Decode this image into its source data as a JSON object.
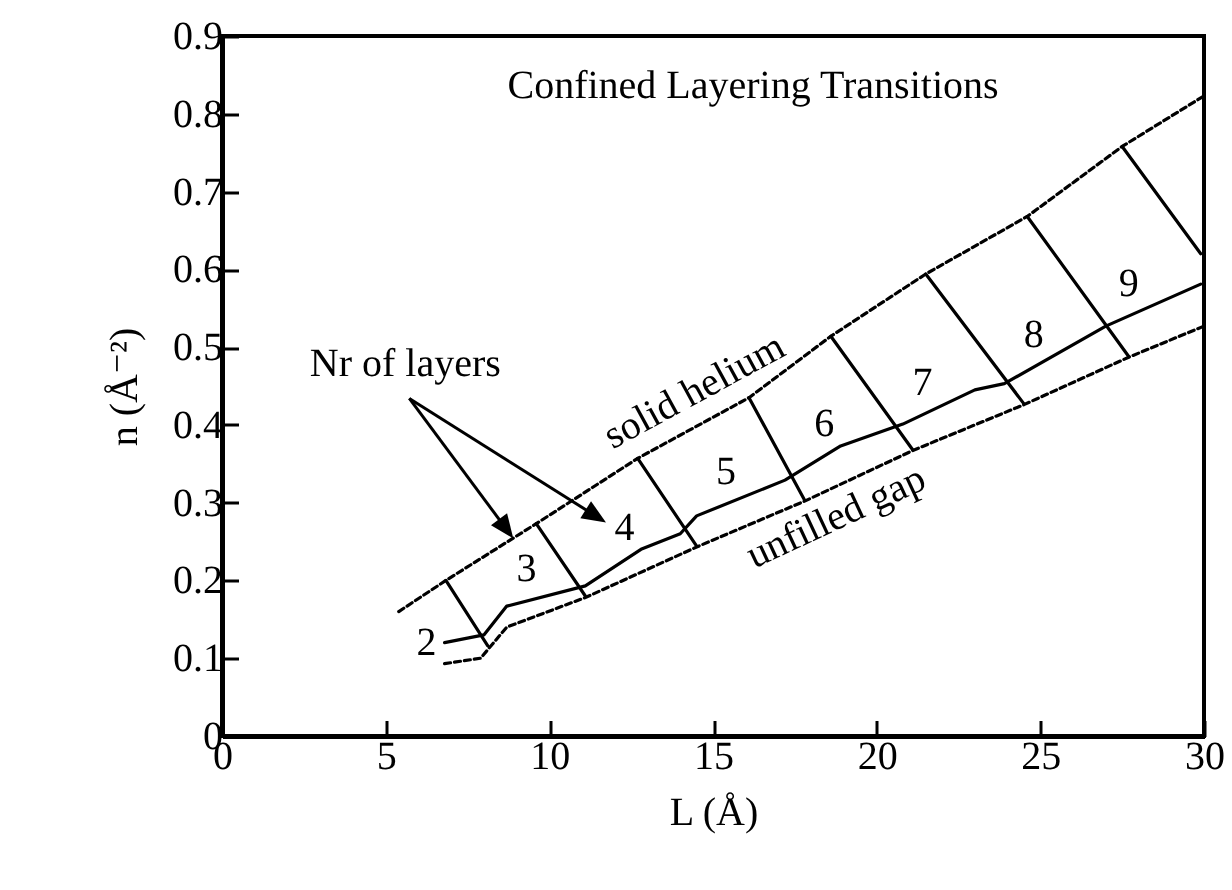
{
  "chart_data": {
    "type": "line",
    "title": "Confined Layering Transitions",
    "xlabel": "L (Å)",
    "ylabel": "n (Å⁻²)",
    "xlim": [
      0,
      30
    ],
    "ylim": [
      0,
      0.9
    ],
    "xticks": [
      0,
      5,
      10,
      15,
      20,
      25,
      30
    ],
    "yticks": [
      0,
      0.1,
      0.2,
      0.3,
      0.4,
      0.5,
      0.6,
      0.7,
      0.8,
      0.9
    ],
    "series": [
      {
        "color": "#000000",
        "line_style": "dashed",
        "x": [
          5.4,
          6.84,
          9.6,
          12.7,
          16.1,
          18.6,
          21.5,
          24.6,
          27.5,
          30
        ],
        "values": [
          0.16,
          0.2,
          0.273,
          0.357,
          0.435,
          0.514,
          0.594,
          0.668,
          0.758,
          0.823
        ]
      },
      {
        "color": "#000000",
        "line_style": "solid",
        "x": [
          6.8,
          8.0,
          8.7,
          11.1,
          12.8,
          14.0,
          14.5,
          17.2,
          18.9,
          20.8,
          23.0,
          23.9,
          27.0,
          29.9
        ],
        "values": [
          0.12,
          0.13,
          0.167,
          0.193,
          0.24,
          0.26,
          0.283,
          0.329,
          0.373,
          0.401,
          0.445,
          0.453,
          0.527,
          0.581
        ]
      },
      {
        "color": "#000000",
        "line_style": "dashed",
        "x": [
          6.8,
          7.9,
          8.7,
          11.1,
          14.5,
          17.8,
          21.1,
          24.5,
          27.7,
          30
        ],
        "values": [
          0.093,
          0.1,
          0.14,
          0.178,
          0.243,
          0.302,
          0.367,
          0.426,
          0.487,
          0.527
        ]
      },
      {
        "color": "#000000",
        "line_style": "solid",
        "x": [
          6.84,
          8.12
        ],
        "values": [
          0.2,
          0.116
        ]
      },
      {
        "color": "#000000",
        "line_style": "solid",
        "x": [
          9.6,
          11.1
        ],
        "values": [
          0.273,
          0.18
        ]
      },
      {
        "color": "#000000",
        "line_style": "solid",
        "x": [
          12.7,
          14.5
        ],
        "values": [
          0.357,
          0.244
        ]
      },
      {
        "color": "#000000",
        "line_style": "solid",
        "x": [
          16.1,
          17.8
        ],
        "values": [
          0.435,
          0.303
        ]
      },
      {
        "color": "#000000",
        "line_style": "solid",
        "x": [
          18.6,
          21.1
        ],
        "values": [
          0.514,
          0.368
        ]
      },
      {
        "color": "#000000",
        "line_style": "solid",
        "x": [
          21.5,
          24.5
        ],
        "values": [
          0.594,
          0.427
        ]
      },
      {
        "color": "#000000",
        "line_style": "solid",
        "x": [
          24.6,
          27.7
        ],
        "values": [
          0.668,
          0.488
        ]
      },
      {
        "color": "#000000",
        "line_style": "solid",
        "x": [
          27.5,
          29.9
        ],
        "values": [
          0.758,
          0.62
        ]
      }
    ],
    "annotations": [
      {
        "text": "Nr of layers",
        "x": 8.9,
        "y": 0.254
      },
      {
        "text": "2",
        "x": 6.8,
        "y": 0.12
      },
      {
        "text": "3",
        "x": 9.3,
        "y": 0.174
      },
      {
        "text": "4",
        "x": 12.3,
        "y": 0.226
      },
      {
        "text": "5",
        "x": 15.4,
        "y": 0.298
      },
      {
        "text": "6",
        "x": 18.4,
        "y": 0.36
      },
      {
        "text": "7",
        "x": 21.4,
        "y": 0.413
      },
      {
        "text": "8",
        "x": 24.8,
        "y": 0.474
      },
      {
        "text": "9",
        "x": 27.7,
        "y": 0.54
      },
      {
        "text": "solid helium",
        "x": 14.9,
        "y": 0.407
      },
      {
        "text": "unfilled gap",
        "x": 18.4,
        "y": 0.314
      }
    ]
  }
}
